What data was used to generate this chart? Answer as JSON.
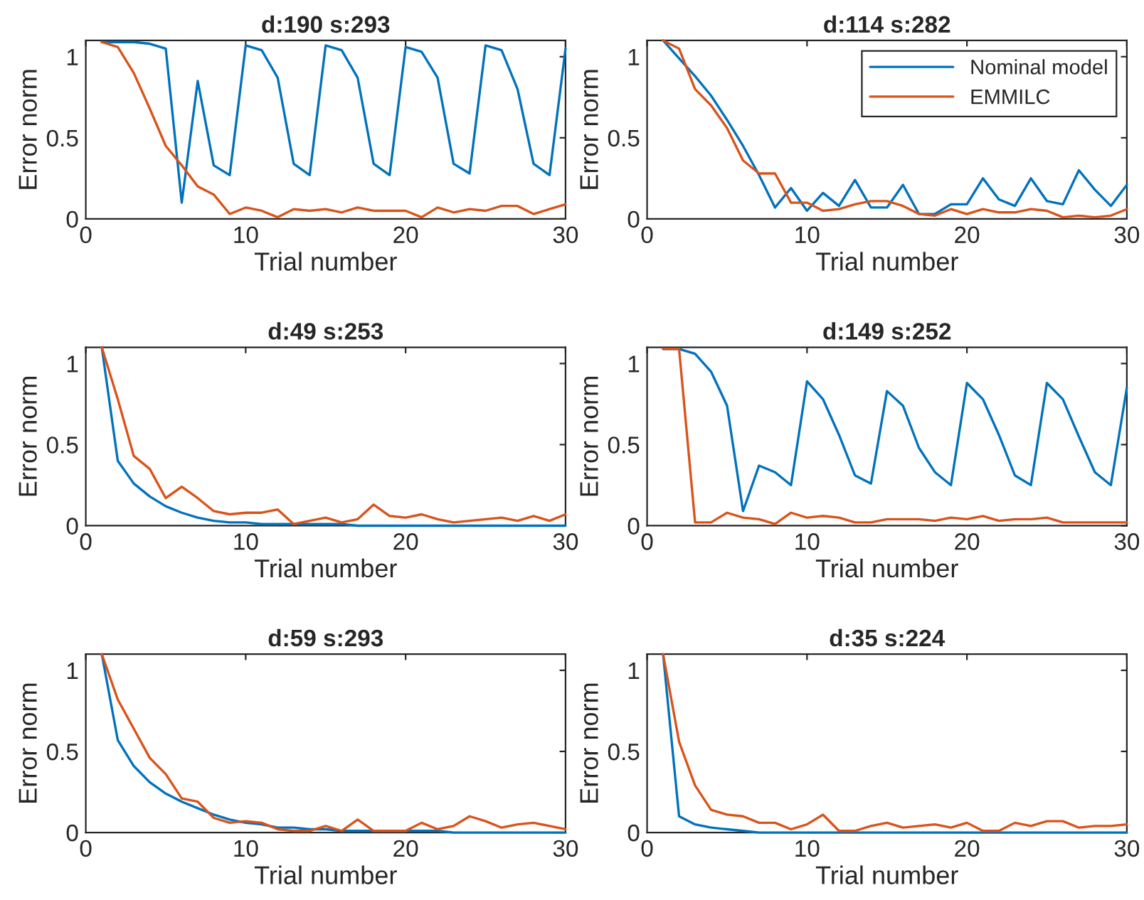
{
  "chart_data": [
    {
      "type": "line",
      "title": "d:190 s:293",
      "xlabel": "Trial number",
      "ylabel": "Error norm",
      "x": [
        1,
        2,
        3,
        4,
        5,
        6,
        7,
        8,
        9,
        10,
        11,
        12,
        13,
        14,
        15,
        16,
        17,
        18,
        19,
        20,
        21,
        22,
        23,
        24,
        25,
        26,
        27,
        28,
        29,
        30
      ],
      "xlim": [
        0,
        30
      ],
      "xticks": [
        0,
        10,
        20,
        30
      ],
      "ylim": [
        0,
        1.1
      ],
      "yticks": [
        0,
        0.5,
        1
      ],
      "series": [
        {
          "color": "#0072bd",
          "values": [
            1.09,
            1.09,
            1.09,
            1.08,
            1.05,
            0.1,
            0.85,
            0.33,
            0.27,
            1.07,
            1.04,
            0.87,
            0.34,
            0.27,
            1.07,
            1.04,
            0.87,
            0.34,
            0.27,
            1.06,
            1.03,
            0.87,
            0.34,
            0.28,
            1.07,
            1.04,
            0.8,
            0.34,
            0.27,
            1.05
          ]
        },
        {
          "color": "#d95319",
          "values": [
            1.09,
            1.06,
            0.9,
            0.68,
            0.45,
            0.33,
            0.2,
            0.15,
            0.03,
            0.07,
            0.05,
            0.01,
            0.06,
            0.05,
            0.06,
            0.04,
            0.07,
            0.05,
            0.05,
            0.05,
            0.01,
            0.07,
            0.04,
            0.06,
            0.05,
            0.08,
            0.08,
            0.03,
            0.06,
            0.09
          ]
        }
      ]
    },
    {
      "type": "line",
      "title": "d:114 s:282",
      "xlabel": "Trial number",
      "ylabel": "Error norm",
      "x": [
        1,
        2,
        3,
        4,
        5,
        6,
        7,
        8,
        9,
        10,
        11,
        12,
        13,
        14,
        15,
        16,
        17,
        18,
        19,
        20,
        21,
        22,
        23,
        24,
        25,
        26,
        27,
        28,
        29,
        30
      ],
      "xlim": [
        0,
        30
      ],
      "xticks": [
        0,
        10,
        20,
        30
      ],
      "ylim": [
        0,
        1.1
      ],
      "yticks": [
        0,
        0.5,
        1
      ],
      "legend": "top right",
      "series": [
        {
          "name": "Nominal model",
          "color": "#0072bd",
          "values": [
            1.1,
            0.99,
            0.88,
            0.76,
            0.61,
            0.45,
            0.27,
            0.07,
            0.19,
            0.05,
            0.16,
            0.08,
            0.24,
            0.07,
            0.07,
            0.21,
            0.03,
            0.03,
            0.09,
            0.09,
            0.25,
            0.12,
            0.08,
            0.25,
            0.11,
            0.09,
            0.3,
            0.18,
            0.08,
            0.21
          ]
        },
        {
          "name": "EMMILC",
          "color": "#d95319",
          "values": [
            1.1,
            1.05,
            0.8,
            0.7,
            0.56,
            0.36,
            0.28,
            0.28,
            0.1,
            0.1,
            0.05,
            0.06,
            0.09,
            0.11,
            0.11,
            0.08,
            0.03,
            0.02,
            0.06,
            0.03,
            0.06,
            0.04,
            0.04,
            0.06,
            0.05,
            0.01,
            0.02,
            0.01,
            0.02,
            0.06
          ]
        }
      ]
    },
    {
      "type": "line",
      "title": "d:49 s:253",
      "xlabel": "Trial number",
      "ylabel": "Error norm",
      "x": [
        1,
        2,
        3,
        4,
        5,
        6,
        7,
        8,
        9,
        10,
        11,
        12,
        13,
        14,
        15,
        16,
        17,
        18,
        19,
        20,
        21,
        22,
        23,
        24,
        25,
        26,
        27,
        28,
        29,
        30
      ],
      "xlim": [
        0,
        30
      ],
      "xticks": [
        0,
        10,
        20,
        30
      ],
      "ylim": [
        0,
        1.1
      ],
      "yticks": [
        0,
        0.5,
        1
      ],
      "series": [
        {
          "color": "#0072bd",
          "values": [
            1.1,
            0.4,
            0.26,
            0.18,
            0.12,
            0.08,
            0.05,
            0.03,
            0.02,
            0.02,
            0.01,
            0.01,
            0.01,
            0.01,
            0.01,
            0.01,
            0,
            0,
            0,
            0,
            0,
            0,
            0,
            0,
            0,
            0,
            0,
            0,
            0,
            0
          ]
        },
        {
          "color": "#d95319",
          "values": [
            1.1,
            0.78,
            0.43,
            0.35,
            0.17,
            0.24,
            0.17,
            0.09,
            0.07,
            0.08,
            0.08,
            0.1,
            0.01,
            0.03,
            0.05,
            0.02,
            0.04,
            0.13,
            0.06,
            0.05,
            0.07,
            0.04,
            0.02,
            0.03,
            0.04,
            0.05,
            0.03,
            0.06,
            0.03,
            0.07
          ]
        }
      ]
    },
    {
      "type": "line",
      "title": "d:149 s:252",
      "xlabel": "Trial number",
      "ylabel": "Error norm",
      "x": [
        1,
        2,
        3,
        4,
        5,
        6,
        7,
        8,
        9,
        10,
        11,
        12,
        13,
        14,
        15,
        16,
        17,
        18,
        19,
        20,
        21,
        22,
        23,
        24,
        25,
        26,
        27,
        28,
        29,
        30
      ],
      "xlim": [
        0,
        30
      ],
      "xticks": [
        0,
        10,
        20,
        30
      ],
      "ylim": [
        0,
        1.1
      ],
      "yticks": [
        0,
        0.5,
        1
      ],
      "series": [
        {
          "color": "#0072bd",
          "values": [
            1.09,
            1.09,
            1.06,
            0.95,
            0.74,
            0.09,
            0.37,
            0.33,
            0.25,
            0.89,
            0.78,
            0.56,
            0.31,
            0.26,
            0.83,
            0.74,
            0.48,
            0.33,
            0.25,
            0.88,
            0.78,
            0.56,
            0.31,
            0.25,
            0.88,
            0.78,
            0.55,
            0.33,
            0.25,
            0.85
          ]
        },
        {
          "color": "#d95319",
          "values": [
            1.09,
            1.09,
            0.02,
            0.02,
            0.08,
            0.05,
            0.04,
            0.01,
            0.08,
            0.05,
            0.06,
            0.05,
            0.02,
            0.02,
            0.04,
            0.04,
            0.04,
            0.03,
            0.05,
            0.04,
            0.06,
            0.03,
            0.04,
            0.04,
            0.05,
            0.02,
            0.02,
            0.02,
            0.02,
            0.02
          ]
        }
      ]
    },
    {
      "type": "line",
      "title": "d:59 s:293",
      "xlabel": "Trial number",
      "ylabel": "Error norm",
      "x": [
        1,
        2,
        3,
        4,
        5,
        6,
        7,
        8,
        9,
        10,
        11,
        12,
        13,
        14,
        15,
        16,
        17,
        18,
        19,
        20,
        21,
        22,
        23,
        24,
        25,
        26,
        27,
        28,
        29,
        30
      ],
      "xlim": [
        0,
        30
      ],
      "xticks": [
        0,
        10,
        20,
        30
      ],
      "ylim": [
        0,
        1.1
      ],
      "yticks": [
        0,
        0.5,
        1
      ],
      "series": [
        {
          "color": "#0072bd",
          "values": [
            1.1,
            0.57,
            0.41,
            0.31,
            0.24,
            0.19,
            0.15,
            0.11,
            0.08,
            0.06,
            0.05,
            0.03,
            0.03,
            0.02,
            0.02,
            0.01,
            0.01,
            0.01,
            0.01,
            0.01,
            0.01,
            0.01,
            0,
            0,
            0,
            0,
            0,
            0,
            0,
            0
          ]
        },
        {
          "color": "#d95319",
          "values": [
            1.1,
            0.82,
            0.64,
            0.46,
            0.36,
            0.21,
            0.19,
            0.09,
            0.06,
            0.07,
            0.06,
            0.02,
            0.01,
            0.01,
            0.04,
            0.01,
            0.08,
            0.01,
            0.01,
            0.01,
            0.06,
            0.02,
            0.04,
            0.1,
            0.07,
            0.03,
            0.05,
            0.06,
            0.04,
            0.02
          ]
        }
      ]
    },
    {
      "type": "line",
      "title": "d:35 s:224",
      "xlabel": "Trial number",
      "ylabel": "Error norm",
      "x": [
        1,
        2,
        3,
        4,
        5,
        6,
        7,
        8,
        9,
        10,
        11,
        12,
        13,
        14,
        15,
        16,
        17,
        18,
        19,
        20,
        21,
        22,
        23,
        24,
        25,
        26,
        27,
        28,
        29,
        30
      ],
      "xlim": [
        0,
        30
      ],
      "xticks": [
        0,
        10,
        20,
        30
      ],
      "ylim": [
        0,
        1.1
      ],
      "yticks": [
        0,
        0.5,
        1
      ],
      "series": [
        {
          "color": "#0072bd",
          "values": [
            1.1,
            0.1,
            0.05,
            0.03,
            0.02,
            0.01,
            0,
            0,
            0,
            0,
            0,
            0,
            0,
            0,
            0,
            0,
            0,
            0,
            0,
            0,
            0,
            0,
            0,
            0,
            0,
            0,
            0,
            0,
            0,
            0
          ]
        },
        {
          "color": "#d95319",
          "values": [
            1.1,
            0.56,
            0.29,
            0.14,
            0.11,
            0.1,
            0.06,
            0.06,
            0.02,
            0.05,
            0.11,
            0.01,
            0.01,
            0.04,
            0.06,
            0.03,
            0.04,
            0.05,
            0.03,
            0.06,
            0.01,
            0.01,
            0.06,
            0.04,
            0.07,
            0.07,
            0.03,
            0.04,
            0.04,
            0.05
          ]
        }
      ]
    }
  ]
}
